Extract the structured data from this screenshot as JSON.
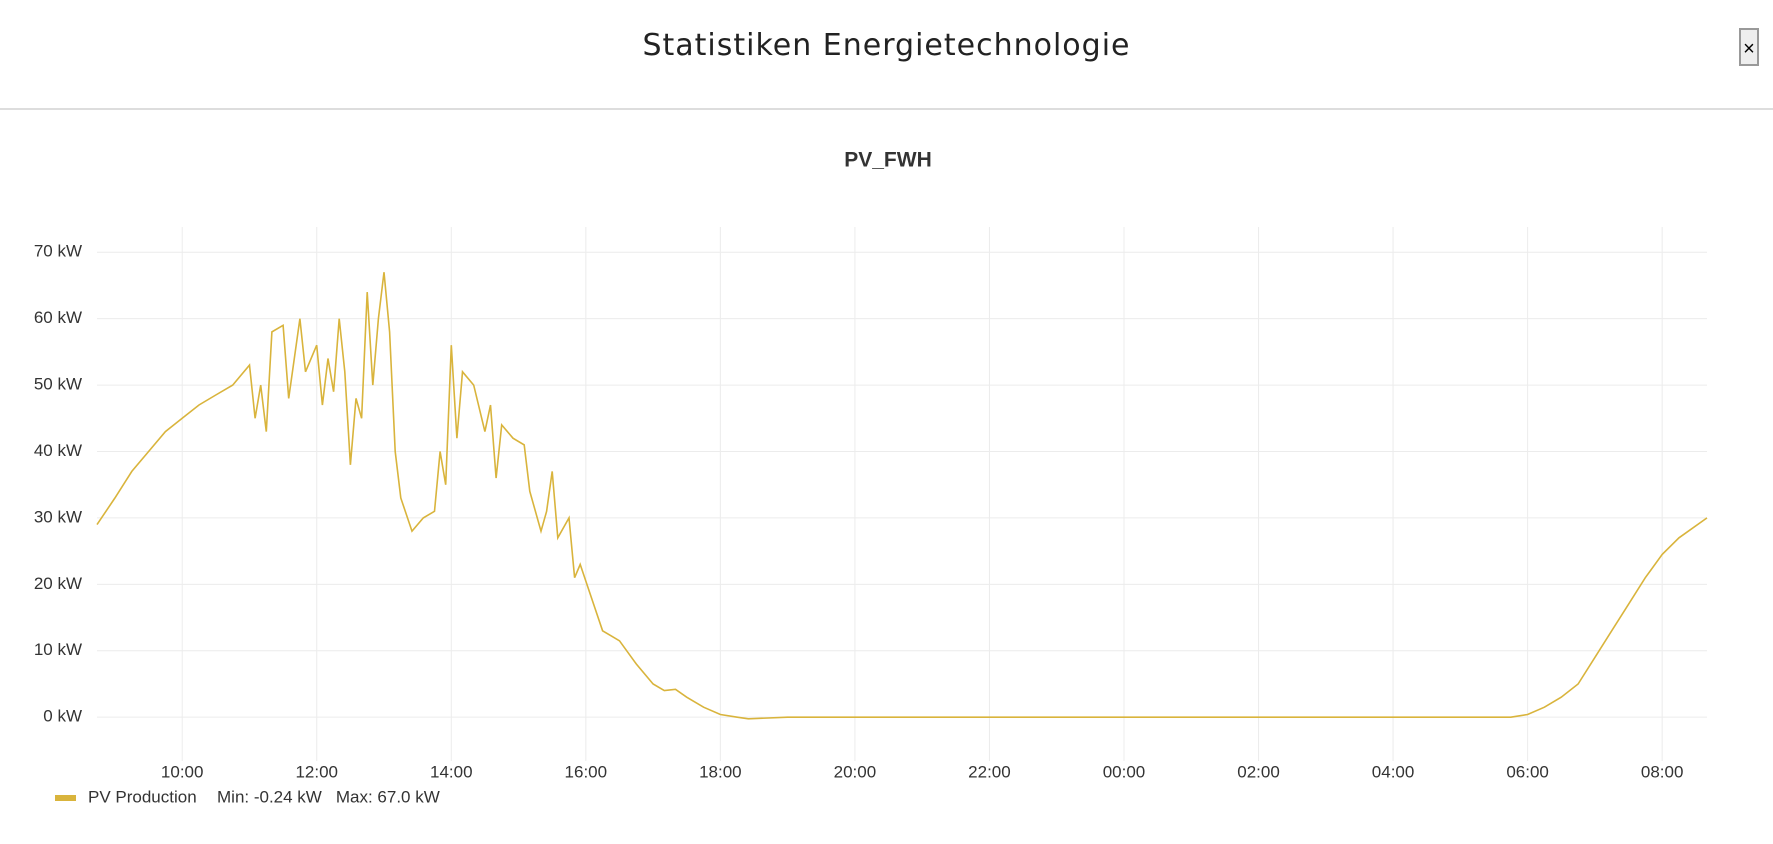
{
  "header": {
    "title": "Statistiken Energietechnologie",
    "close": "×"
  },
  "chart_data": {
    "type": "line",
    "title": "PV_FWH",
    "x": [
      "08:44",
      "09:00",
      "09:15",
      "09:30",
      "09:45",
      "10:00",
      "10:15",
      "10:30",
      "10:45",
      "11:00",
      "11:05",
      "11:10",
      "11:15",
      "11:20",
      "11:30",
      "11:35",
      "11:45",
      "11:50",
      "12:00",
      "12:05",
      "12:10",
      "12:15",
      "12:20",
      "12:25",
      "12:30",
      "12:35",
      "12:40",
      "12:45",
      "12:50",
      "12:55",
      "13:00",
      "13:05",
      "13:10",
      "13:15",
      "13:25",
      "13:35",
      "13:45",
      "13:50",
      "13:55",
      "14:00",
      "14:05",
      "14:10",
      "14:20",
      "14:30",
      "14:35",
      "14:40",
      "14:45",
      "14:55",
      "15:05",
      "15:10",
      "15:20",
      "15:25",
      "15:30",
      "15:35",
      "15:45",
      "15:50",
      "15:55",
      "16:05",
      "16:15",
      "16:30",
      "16:45",
      "17:00",
      "17:10",
      "17:20",
      "17:30",
      "17:45",
      "18:00",
      "18:15",
      "18:25",
      "19:00",
      "22:00",
      "02:00",
      "05:45",
      "06:00",
      "06:15",
      "06:30",
      "06:45",
      "07:00",
      "07:15",
      "07:30",
      "07:45",
      "08:00",
      "08:15",
      "08:40"
    ],
    "series": [
      {
        "name": "PV Production",
        "color": "#d9b43c",
        "values": [
          29,
          33,
          37,
          40,
          43,
          45,
          47,
          48.5,
          50,
          53,
          45,
          50,
          43,
          58,
          59,
          48,
          60,
          52,
          56,
          47,
          54,
          49,
          60,
          52,
          38,
          48,
          45,
          64,
          50,
          60,
          67,
          58,
          40,
          33,
          28,
          30,
          31,
          40,
          35,
          56,
          42,
          52,
          50,
          43,
          47,
          36,
          44,
          42,
          41,
          34,
          28,
          31,
          37,
          27,
          30,
          21,
          23,
          18,
          13,
          11.5,
          8,
          5,
          4,
          4.2,
          3,
          1.5,
          0.4,
          0,
          -0.24,
          0,
          0,
          0,
          0,
          0.4,
          1.5,
          3,
          5,
          9,
          13,
          17,
          21,
          24.5,
          27,
          30
        ]
      }
    ],
    "legend_stats": [
      "Min: -0.24 kW",
      "Max: 67.0 kW"
    ],
    "xlim": [
      "08:44",
      "08:40"
    ],
    "xticks": [
      "10:00",
      "12:00",
      "14:00",
      "16:00",
      "18:00",
      "20:00",
      "22:00",
      "00:00",
      "02:00",
      "04:00",
      "06:00",
      "08:00"
    ],
    "ylim": [
      -6.6,
      73.8
    ],
    "yticks": [
      {
        "value": 0,
        "label": "0 kW"
      },
      {
        "value": 10,
        "label": "10 kW"
      },
      {
        "value": 20,
        "label": "20 kW"
      },
      {
        "value": 30,
        "label": "30 kW"
      },
      {
        "value": 40,
        "label": "40 kW"
      },
      {
        "value": 50,
        "label": "50 kW"
      },
      {
        "value": 60,
        "label": "60 kW"
      },
      {
        "value": 70,
        "label": "70 kW"
      }
    ],
    "grid": true
  }
}
